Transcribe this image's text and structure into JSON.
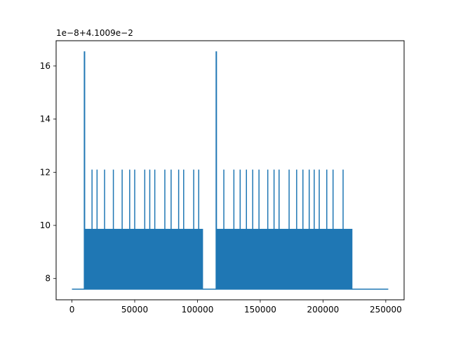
{
  "chart_data": {
    "type": "line",
    "offset_text": "1e−8+4.1009e−2",
    "xlim": [
      -12600,
      264600
    ],
    "ylim": [
      7.2,
      16.95
    ],
    "x_ticks": [
      {
        "value": 0,
        "label": "0"
      },
      {
        "value": 50000,
        "label": "50000"
      },
      {
        "value": 100000,
        "label": "100000"
      },
      {
        "value": 150000,
        "label": "150000"
      },
      {
        "value": 200000,
        "label": "200000"
      },
      {
        "value": 250000,
        "label": "250000"
      }
    ],
    "y_ticks": [
      {
        "value": 8,
        "label": "8"
      },
      {
        "value": 10,
        "label": "10"
      },
      {
        "value": 12,
        "label": "12"
      },
      {
        "value": 14,
        "label": "14"
      },
      {
        "value": 16,
        "label": "16"
      }
    ],
    "grid": false,
    "color": "#1f77b4",
    "series": [
      {
        "baseline": 7.6,
        "band_top": 9.85,
        "bands": [
          [
            10000,
            104000
          ],
          [
            115000,
            223000
          ]
        ],
        "flat_segments": [
          [
            0,
            10000
          ],
          [
            104000,
            115000
          ],
          [
            223000,
            252000
          ]
        ],
        "tall_spikes": [
          {
            "x": 10000,
            "y": 16.55
          },
          {
            "x": 115000,
            "y": 16.55
          }
        ],
        "mid_spikes": {
          "y": 12.1,
          "x": [
            16000,
            20000,
            26000,
            33000,
            40000,
            46000,
            50000,
            58000,
            62000,
            66000,
            74000,
            79000,
            85000,
            89000,
            97000,
            101000,
            121000,
            129000,
            134000,
            139000,
            144000,
            149000,
            156000,
            161000,
            165000,
            173000,
            179000,
            184000,
            189000,
            193000,
            197000,
            203000,
            208000,
            216000
          ]
        }
      }
    ]
  }
}
